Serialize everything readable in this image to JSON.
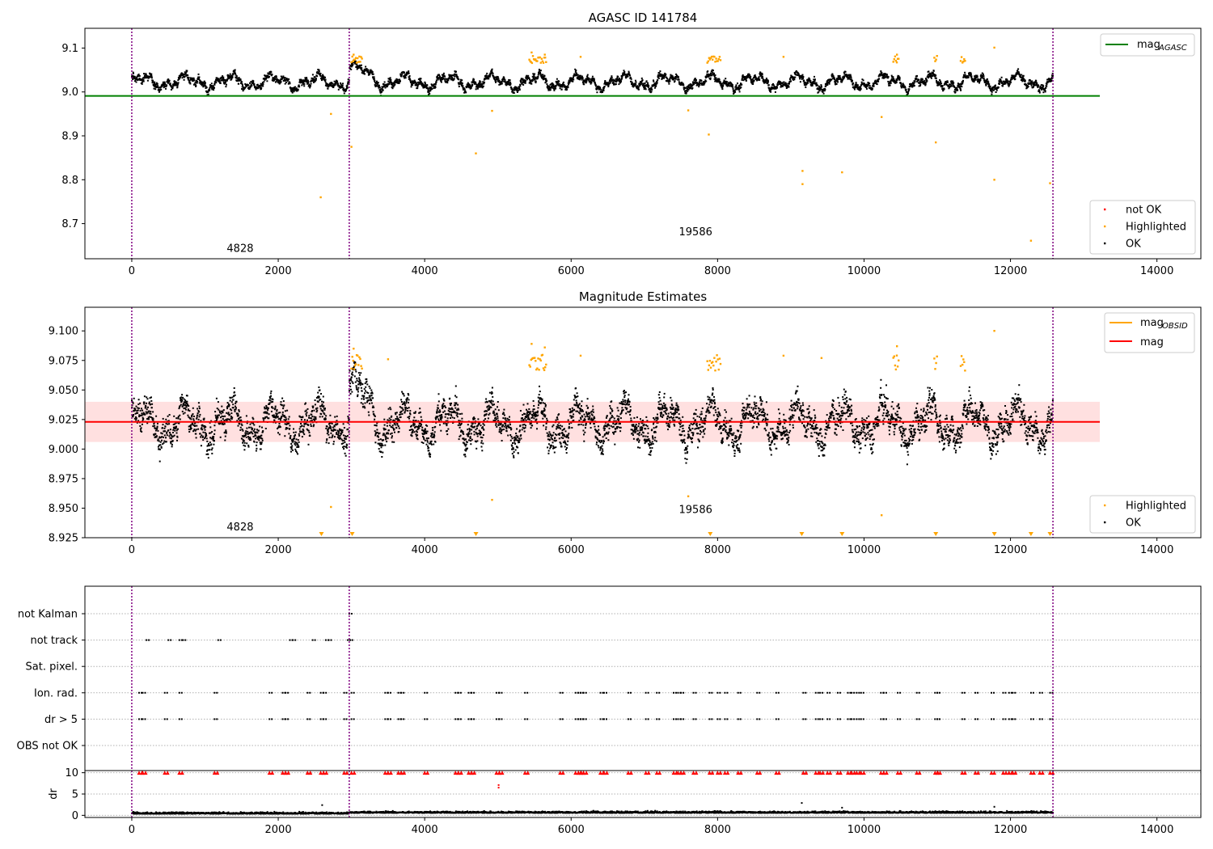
{
  "chart_data": [
    {
      "type": "scatter",
      "title": "AGASC ID 141784",
      "x_ticks": [
        0,
        2000,
        4000,
        6000,
        8000,
        10000,
        12000,
        14000
      ],
      "y_ticks": [
        "8.7",
        "8.8",
        "8.9",
        "9.0",
        "9.1"
      ],
      "xlim": [
        -640,
        14600
      ],
      "ylim": [
        8.62,
        9.145
      ],
      "obs_lines": [
        0,
        2970,
        12580
      ],
      "obs_labels": [
        {
          "text": "4828",
          "x": 1480,
          "y": 8.636
        },
        {
          "text": "19586",
          "x": 7700,
          "y": 8.673
        }
      ],
      "reference_line": {
        "name": "mag",
        "sub": "AGASC",
        "value": 8.991,
        "x_range": [
          -640,
          13220
        ],
        "color": "#008000"
      },
      "series": [
        {
          "name": "not OK",
          "color": "#ff0000"
        },
        {
          "name": "Highlighted",
          "color": "#ffa500"
        },
        {
          "name": "OK",
          "color": "#000000"
        }
      ],
      "highlighted_outliers": [
        [
          2580,
          8.76
        ],
        [
          2720,
          8.95
        ],
        [
          3000,
          8.875
        ],
        [
          4700,
          8.86
        ],
        [
          4920,
          8.957
        ],
        [
          7600,
          8.958
        ],
        [
          7880,
          8.903
        ],
        [
          9160,
          8.82
        ],
        [
          9160,
          8.79
        ],
        [
          9700,
          8.817
        ],
        [
          10240,
          8.943
        ],
        [
          10980,
          8.885
        ],
        [
          11780,
          8.8
        ],
        [
          12280,
          8.661
        ],
        [
          12540,
          8.792
        ],
        [
          11780,
          9.101
        ],
        [
          10450,
          9.085
        ],
        [
          5460,
          9.09
        ],
        [
          5640,
          9.085
        ],
        [
          3030,
          9.085
        ],
        [
          6130,
          9.08
        ],
        [
          8900,
          9.08
        ]
      ]
    },
    {
      "type": "scatter",
      "title": "Magnitude Estimates",
      "x_ticks": [
        0,
        2000,
        4000,
        6000,
        8000,
        10000,
        12000,
        14000
      ],
      "y_ticks": [
        "8.925",
        "8.950",
        "8.975",
        "9.000",
        "9.025",
        "9.050",
        "9.075",
        "9.100"
      ],
      "xlim": [
        -640,
        14600
      ],
      "ylim": [
        8.925,
        9.12
      ],
      "obs_lines": [
        0,
        2970,
        12580
      ],
      "obs_labels": [
        {
          "text": "4828",
          "x": 1480,
          "y": 8.931
        },
        {
          "text": "19586",
          "x": 7700,
          "y": 8.946
        }
      ],
      "mean_line": {
        "name": "mag",
        "value": 9.023,
        "band": [
          9.006,
          9.04
        ],
        "x_range": [
          -640,
          13220
        ],
        "color": "#ff0000"
      },
      "obsid_line": {
        "name": "mag",
        "sub": "OBSID",
        "color": "#ffa500"
      },
      "series": [
        {
          "name": "Highlighted",
          "color": "#ffa500"
        },
        {
          "name": "OK",
          "color": "#000000"
        }
      ],
      "highlighted_outliers": [
        [
          2720,
          8.951
        ],
        [
          4920,
          8.957
        ],
        [
          7600,
          8.96
        ],
        [
          10240,
          8.944
        ],
        [
          11780,
          9.1
        ],
        [
          5460,
          9.089
        ],
        [
          5640,
          9.086
        ],
        [
          3030,
          9.085
        ],
        [
          6130,
          9.079
        ],
        [
          3500,
          9.076
        ],
        [
          9420,
          9.077
        ],
        [
          10450,
          9.087
        ],
        [
          8900,
          9.079
        ]
      ],
      "below_range_markers": [
        2590,
        3010,
        4700,
        7900,
        9150,
        9700,
        10980,
        11780,
        12280,
        12540
      ]
    },
    {
      "type": "scatter",
      "title": "",
      "x_ticks": [
        0,
        2000,
        4000,
        6000,
        8000,
        10000,
        12000,
        14000
      ],
      "xlim": [
        -640,
        14600
      ],
      "obs_lines": [
        0,
        2970,
        12580
      ],
      "flag_rows": [
        "not Kalman",
        "not track",
        "Sat. pixel.",
        "Ion. rad.",
        "dr > 5",
        "OBS not OK"
      ],
      "flag_points": {
        "not Kalman": [
          2970
        ],
        "not track": [
          200,
          500,
          650,
          700,
          1180,
          2160,
          2200,
          2470,
          2650,
          2690,
          2950,
          2980
        ],
        "Sat. pixel.": [],
        "Ion. rad.": [
          100,
          150,
          450,
          650,
          1130,
          1880,
          2060,
          2100,
          2400,
          2580,
          2620,
          2900,
          3000,
          3460,
          3500,
          3640,
          3680,
          4000,
          4420,
          4460,
          4600,
          4640,
          4980,
          5020,
          5370,
          5850,
          6060,
          6100,
          6130,
          6170,
          6400,
          6450,
          6780,
          7020,
          7170,
          7400,
          7460,
          7500,
          7670,
          7890,
          8000,
          8100,
          8280,
          8540,
          8800,
          9170,
          9340,
          9400,
          9500,
          9640,
          9780,
          9830,
          9900,
          9960,
          10230,
          10270,
          10460,
          10720,
          10970,
          11000,
          11340,
          11520,
          11740,
          11900,
          11980,
          12030,
          12280,
          12400,
          12540
        ],
        "dr > 5": [
          100,
          150,
          450,
          650,
          1130,
          1880,
          2060,
          2100,
          2400,
          2580,
          2620,
          2900,
          3000,
          3460,
          3500,
          3640,
          3680,
          4000,
          4420,
          4460,
          4600,
          4640,
          4980,
          5020,
          5370,
          5850,
          6060,
          6100,
          6130,
          6170,
          6400,
          6450,
          6780,
          7020,
          7170,
          7400,
          7460,
          7500,
          7670,
          7890,
          8000,
          8100,
          8280,
          8540,
          8800,
          9170,
          9340,
          9400,
          9500,
          9640,
          9780,
          9830,
          9900,
          9960,
          10230,
          10270,
          10460,
          10720,
          10970,
          11000,
          11340,
          11520,
          11740,
          11900,
          11980,
          12030,
          12280,
          12400,
          12540
        ],
        "OBS not OK": []
      },
      "dr_ylabel": "dr",
      "dr_ticks": [
        "0",
        "5",
        "10"
      ],
      "dr_ylim": [
        -0.5,
        10.5
      ],
      "dr_points": [
        [
          2600,
          2.4
        ],
        [
          5010,
          6.5
        ],
        [
          5010,
          7.1
        ],
        [
          9150,
          2.9
        ],
        [
          9700,
          1.8
        ],
        [
          11780,
          2.0
        ]
      ],
      "dr_capped": [
        100,
        150,
        450,
        650,
        1130,
        1880,
        2060,
        2100,
        2400,
        2580,
        2620,
        2900,
        3000,
        3460,
        3500,
        3640,
        3680,
        4000,
        4420,
        4460,
        4600,
        4640,
        4980,
        5020,
        5370,
        5850,
        6060,
        6100,
        6130,
        6170,
        6400,
        6450,
        6780,
        7020,
        7170,
        7400,
        7460,
        7500,
        7670,
        7890,
        8000,
        8100,
        8280,
        8540,
        8800,
        9170,
        9340,
        9400,
        9500,
        9640,
        9780,
        9830,
        9900,
        9960,
        10230,
        10270,
        10460,
        10720,
        10970,
        11000,
        11340,
        11520,
        11740,
        11900,
        11980,
        12030,
        12280,
        12400,
        12540
      ]
    }
  ]
}
